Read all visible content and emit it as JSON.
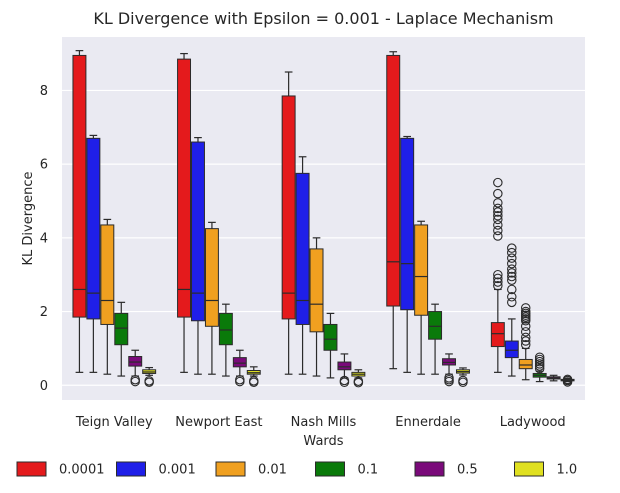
{
  "chart_data": {
    "type": "box",
    "title": "KL Divergence with Epsilon = 0.001 - Laplace Mechanism",
    "xlabel": "Wards",
    "ylabel": "KL Divergence",
    "ylim": [
      -0.4,
      9.45
    ],
    "yticks": [
      0,
      2,
      4,
      6,
      8
    ],
    "categories": [
      "Teign Valley",
      "Newport East",
      "Nash Mills",
      "Ennerdale",
      "Ladywood"
    ],
    "grid": true,
    "legend_position": "bottom",
    "series": [
      {
        "name": "0.0001",
        "color": "#e41a1c",
        "boxes": [
          {
            "whislo": 0.35,
            "q1": 1.85,
            "med": 2.6,
            "q3": 8.95,
            "whishi": 9.08,
            "fliers": []
          },
          {
            "whislo": 0.35,
            "q1": 1.85,
            "med": 2.6,
            "q3": 8.85,
            "whishi": 9.0,
            "fliers": []
          },
          {
            "whislo": 0.3,
            "q1": 1.8,
            "med": 2.5,
            "q3": 7.85,
            "whishi": 8.5,
            "fliers": []
          },
          {
            "whislo": 0.45,
            "q1": 2.15,
            "med": 3.35,
            "q3": 8.95,
            "whishi": 9.05,
            "fliers": []
          },
          {
            "whislo": 0.35,
            "q1": 1.05,
            "med": 1.4,
            "q3": 1.7,
            "whishi": 2.6,
            "fliers": [
              2.7,
              2.8,
              2.9,
              3.0,
              4.05,
              4.2,
              4.35,
              4.5,
              4.6,
              4.7,
              4.8,
              4.95,
              5.2,
              5.5
            ]
          }
        ]
      },
      {
        "name": "0.001",
        "color": "#1f1fe8",
        "boxes": [
          {
            "whislo": 0.35,
            "q1": 1.8,
            "med": 2.5,
            "q3": 6.7,
            "whishi": 6.78,
            "fliers": []
          },
          {
            "whislo": 0.3,
            "q1": 1.75,
            "med": 2.5,
            "q3": 6.6,
            "whishi": 6.72,
            "fliers": []
          },
          {
            "whislo": 0.3,
            "q1": 1.65,
            "med": 2.3,
            "q3": 5.75,
            "whishi": 6.2,
            "fliers": []
          },
          {
            "whislo": 0.35,
            "q1": 2.05,
            "med": 3.3,
            "q3": 6.7,
            "whishi": 6.75,
            "fliers": []
          },
          {
            "whislo": 0.25,
            "q1": 0.75,
            "med": 0.95,
            "q3": 1.2,
            "whishi": 1.8,
            "fliers": [
              2.25,
              2.4,
              2.6,
              2.85,
              2.95,
              3.05,
              3.15,
              3.3,
              3.45,
              3.6,
              3.72
            ]
          }
        ]
      },
      {
        "name": "0.01",
        "color": "#f0a020",
        "boxes": [
          {
            "whislo": 0.3,
            "q1": 1.65,
            "med": 2.3,
            "q3": 4.35,
            "whishi": 4.5,
            "fliers": []
          },
          {
            "whislo": 0.3,
            "q1": 1.6,
            "med": 2.3,
            "q3": 4.25,
            "whishi": 4.42,
            "fliers": []
          },
          {
            "whislo": 0.25,
            "q1": 1.45,
            "med": 2.2,
            "q3": 3.7,
            "whishi": 4.0,
            "fliers": []
          },
          {
            "whislo": 0.3,
            "q1": 1.9,
            "med": 2.95,
            "q3": 4.35,
            "whishi": 4.45,
            "fliers": []
          },
          {
            "whislo": 0.15,
            "q1": 0.45,
            "med": 0.55,
            "q3": 0.7,
            "whishi": 1.0,
            "fliers": [
              1.1,
              1.2,
              1.3,
              1.45,
              1.6,
              1.75,
              1.8,
              1.85,
              1.9,
              1.95,
              2.0,
              2.1
            ]
          }
        ]
      },
      {
        "name": "0.1",
        "color": "#0a7a0a",
        "boxes": [
          {
            "whislo": 0.25,
            "q1": 1.1,
            "med": 1.55,
            "q3": 1.95,
            "whishi": 2.25,
            "fliers": []
          },
          {
            "whislo": 0.25,
            "q1": 1.1,
            "med": 1.5,
            "q3": 1.95,
            "whishi": 2.2,
            "fliers": []
          },
          {
            "whislo": 0.2,
            "q1": 0.95,
            "med": 1.25,
            "q3": 1.65,
            "whishi": 1.95,
            "fliers": []
          },
          {
            "whislo": 0.3,
            "q1": 1.25,
            "med": 1.6,
            "q3": 2.0,
            "whishi": 2.2,
            "fliers": []
          },
          {
            "whislo": 0.1,
            "q1": 0.22,
            "med": 0.27,
            "q3": 0.32,
            "whishi": 0.38,
            "fliers": [
              0.45,
              0.52,
              0.58,
              0.64,
              0.7,
              0.76
            ]
          }
        ]
      },
      {
        "name": "0.5",
        "color": "#7a0a7a",
        "boxes": [
          {
            "whislo": 0.25,
            "q1": 0.52,
            "med": 0.63,
            "q3": 0.78,
            "whishi": 0.95,
            "fliers": [
              0.1,
              0.15
            ]
          },
          {
            "whislo": 0.25,
            "q1": 0.5,
            "med": 0.6,
            "q3": 0.75,
            "whishi": 0.95,
            "fliers": [
              0.1,
              0.15
            ]
          },
          {
            "whislo": 0.2,
            "q1": 0.42,
            "med": 0.5,
            "q3": 0.63,
            "whishi": 0.85,
            "fliers": [
              0.08,
              0.13
            ]
          },
          {
            "whislo": 0.3,
            "q1": 0.55,
            "med": 0.62,
            "q3": 0.72,
            "whishi": 0.85,
            "fliers": [
              0.1,
              0.15,
              0.2
            ]
          },
          {
            "whislo": 0.12,
            "q1": 0.17,
            "med": 0.2,
            "q3": 0.23,
            "whishi": 0.27,
            "fliers": []
          }
        ]
      },
      {
        "name": "1.0",
        "color": "#e0e020",
        "boxes": [
          {
            "whislo": 0.27,
            "q1": 0.32,
            "med": 0.36,
            "q3": 0.42,
            "whishi": 0.48,
            "fliers": [
              0.08,
              0.12
            ]
          },
          {
            "whislo": 0.25,
            "q1": 0.3,
            "med": 0.34,
            "q3": 0.4,
            "whishi": 0.5,
            "fliers": [
              0.08,
              0.12
            ]
          },
          {
            "whislo": 0.2,
            "q1": 0.25,
            "med": 0.3,
            "q3": 0.35,
            "whishi": 0.42,
            "fliers": [
              0.07,
              0.11
            ]
          },
          {
            "whislo": 0.28,
            "q1": 0.33,
            "med": 0.37,
            "q3": 0.42,
            "whishi": 0.47,
            "fliers": [
              0.08,
              0.13
            ]
          },
          {
            "whislo": 0.1,
            "q1": 0.12,
            "med": 0.14,
            "q3": 0.16,
            "whishi": 0.18,
            "fliers": [
              0.09,
              0.13,
              0.16
            ]
          }
        ]
      }
    ]
  }
}
